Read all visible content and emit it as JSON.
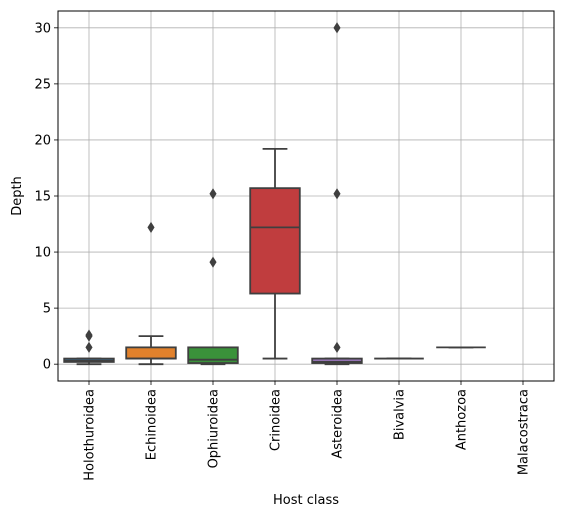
{
  "chart_data": {
    "type": "box",
    "title": "",
    "xlabel": "Host class",
    "ylabel": "Depth",
    "ylim": [
      -1.5,
      31.5
    ],
    "yticks": [
      0,
      5,
      10,
      15,
      20,
      25,
      30
    ],
    "grid": true,
    "categories": [
      "Holothuroidea",
      "Echinoidea",
      "Ophiuroidea",
      "Crinoidea",
      "Asteroidea",
      "Bivalvia",
      "Anthozoa",
      "Malacostraca"
    ],
    "boxes": [
      {
        "category": "Holothuroidea",
        "whisker_low": 0.0,
        "q1": 0.2,
        "median": 0.3,
        "q3": 0.5,
        "whisker_high": 0.5,
        "outliers": [
          1.5,
          2.5,
          2.6
        ],
        "color": "#3a6f99"
      },
      {
        "category": "Echinoidea",
        "whisker_low": 0.0,
        "q1": 0.5,
        "median": 0.5,
        "q3": 1.5,
        "whisker_high": 2.5,
        "outliers": [
          12.2
        ],
        "color": "#e1812c"
      },
      {
        "category": "Ophiuroidea",
        "whisker_low": 0.0,
        "q1": 0.1,
        "median": 0.4,
        "q3": 1.5,
        "whisker_high": 1.5,
        "outliers": [
          9.1,
          15.2
        ],
        "color": "#3a923a"
      },
      {
        "category": "Crinoidea",
        "whisker_low": 0.5,
        "q1": 6.3,
        "median": 12.2,
        "q3": 15.7,
        "whisker_high": 19.2,
        "outliers": [],
        "color": "#c03d3e"
      },
      {
        "category": "Asteroidea",
        "whisker_low": 0.0,
        "q1": 0.1,
        "median": 0.2,
        "q3": 0.5,
        "whisker_high": 0.5,
        "outliers": [
          1.5,
          15.2,
          30.0
        ],
        "color": "#9372b2"
      },
      {
        "category": "Bivalvia",
        "whisker_low": 0.5,
        "q1": 0.5,
        "median": 0.5,
        "q3": 0.5,
        "whisker_high": 0.5,
        "outliers": [],
        "color": "#845b53"
      },
      {
        "category": "Anthozoa",
        "whisker_low": 1.5,
        "q1": 1.5,
        "median": 1.5,
        "q3": 1.5,
        "whisker_high": 1.5,
        "outliers": [],
        "color": "#d684bd"
      },
      {
        "category": "Malacostraca",
        "whisker_low": null,
        "q1": null,
        "median": null,
        "q3": null,
        "whisker_high": null,
        "outliers": [],
        "color": "#7f7f7f"
      }
    ]
  }
}
